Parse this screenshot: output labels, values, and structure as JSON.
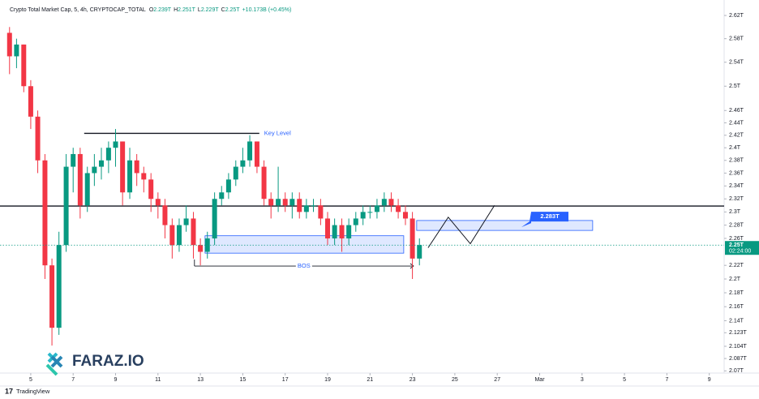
{
  "chart_data": {
    "type": "candlestick",
    "header": {
      "symbol": "Crypto Total Market Cap, 5, 4h, CRYPTOCAP_TOTAL",
      "ohlc": [
        {
          "key": "O",
          "value": "2.239T"
        },
        {
          "key": "H",
          "value": "2.251T"
        },
        {
          "key": "L",
          "value": "2.229T"
        },
        {
          "key": "C",
          "value": "2.25T"
        }
      ],
      "change": "+10.173B (+0.45%)"
    },
    "x": [
      4,
      4.33,
      4.67,
      5,
      5.33,
      5.67,
      6,
      6.33,
      6.67,
      7,
      7.33,
      7.67,
      8,
      8.33,
      8.67,
      9,
      9.33,
      9.67,
      10,
      10.33,
      10.67,
      11,
      11.33,
      11.67,
      12,
      12.33,
      12.67,
      13,
      13.33,
      13.67,
      14,
      14.33,
      14.67,
      15,
      15.33,
      15.67,
      16,
      16.33,
      16.67,
      17,
      17.33,
      17.67,
      18,
      18.33,
      18.67,
      19,
      19.33,
      19.67,
      20,
      20.33,
      20.67,
      21,
      21.33,
      21.67,
      22,
      22.33,
      22.67,
      23,
      23.33
    ],
    "open": [
      2.59,
      2.55,
      2.57,
      2.5,
      2.45,
      2.38,
      2.22,
      2.13,
      2.25,
      2.37,
      2.39,
      2.31,
      2.36,
      2.37,
      2.38,
      2.4,
      2.41,
      2.33,
      2.38,
      2.36,
      2.35,
      2.32,
      2.31,
      2.28,
      2.25,
      2.28,
      2.29,
      2.25,
      2.24,
      2.26,
      2.32,
      2.33,
      2.35,
      2.37,
      2.38,
      2.41,
      2.37,
      2.32,
      2.31,
      2.32,
      2.31,
      2.32,
      2.3,
      2.31,
      2.31,
      2.29,
      2.26,
      2.28,
      2.26,
      2.28,
      2.29,
      2.3,
      2.3,
      2.31,
      2.32,
      2.31,
      2.3,
      2.29,
      2.23
    ],
    "high": [
      2.6,
      2.58,
      2.57,
      2.51,
      2.46,
      2.39,
      2.23,
      2.27,
      2.39,
      2.4,
      2.4,
      2.37,
      2.39,
      2.4,
      2.41,
      2.43,
      2.41,
      2.4,
      2.39,
      2.37,
      2.36,
      2.33,
      2.32,
      2.29,
      2.29,
      2.31,
      2.3,
      2.26,
      2.27,
      2.33,
      2.34,
      2.36,
      2.38,
      2.4,
      2.42,
      2.41,
      2.38,
      2.33,
      2.37,
      2.33,
      2.33,
      2.33,
      2.32,
      2.32,
      2.32,
      2.3,
      2.29,
      2.29,
      2.29,
      2.3,
      2.31,
      2.31,
      2.32,
      2.33,
      2.33,
      2.32,
      2.31,
      2.3,
      2.26
    ],
    "low": [
      2.52,
      2.53,
      2.49,
      2.43,
      2.36,
      2.2,
      2.105,
      2.12,
      2.24,
      2.33,
      2.29,
      2.3,
      2.34,
      2.35,
      2.36,
      2.37,
      2.31,
      2.32,
      2.34,
      2.33,
      2.3,
      2.29,
      2.26,
      2.23,
      2.24,
      2.27,
      2.23,
      2.22,
      2.23,
      2.25,
      2.31,
      2.32,
      2.34,
      2.36,
      2.37,
      2.36,
      2.31,
      2.29,
      2.3,
      2.3,
      2.29,
      2.29,
      2.29,
      2.3,
      2.28,
      2.25,
      2.25,
      2.24,
      2.25,
      2.27,
      2.28,
      2.29,
      2.29,
      2.3,
      2.3,
      2.29,
      2.28,
      2.2,
      2.22
    ],
    "close": [
      2.55,
      2.57,
      2.5,
      2.45,
      2.38,
      2.22,
      2.13,
      2.25,
      2.37,
      2.39,
      2.31,
      2.36,
      2.37,
      2.38,
      2.4,
      2.41,
      2.33,
      2.38,
      2.36,
      2.35,
      2.32,
      2.31,
      2.28,
      2.25,
      2.28,
      2.29,
      2.25,
      2.24,
      2.26,
      2.32,
      2.33,
      2.35,
      2.37,
      2.38,
      2.41,
      2.37,
      2.32,
      2.31,
      2.32,
      2.31,
      2.32,
      2.3,
      2.31,
      2.31,
      2.29,
      2.26,
      2.28,
      2.26,
      2.28,
      2.29,
      2.3,
      2.3,
      2.31,
      2.32,
      2.31,
      2.3,
      2.29,
      2.23,
      2.25
    ],
    "up_color": "#089981",
    "down_color": "#f23645",
    "xlim": [
      3.55,
      37.7
    ],
    "xticks": [
      5,
      7,
      9,
      11,
      13,
      15,
      17,
      19,
      21,
      23,
      25,
      27,
      {
        "value": 29,
        "label": "Mar"
      },
      {
        "value": 31,
        "label": "3"
      },
      {
        "value": 33,
        "label": "5"
      },
      {
        "value": 35,
        "label": "7"
      },
      {
        "value": 37,
        "label": "9"
      }
    ],
    "ylim": [
      2.067,
      2.647
    ],
    "log_scale": true,
    "grid": false,
    "yticks": [
      {
        "value": 2.62,
        "label": "2.62T"
      },
      {
        "value": 2.58,
        "label": "2.58T"
      },
      {
        "value": 2.54,
        "label": "2.54T"
      },
      {
        "value": 2.5,
        "label": "2.5T"
      },
      {
        "value": 2.46,
        "label": "2.46T"
      },
      {
        "value": 2.44,
        "label": "2.44T"
      },
      {
        "value": 2.42,
        "label": "2.42T"
      },
      {
        "value": 2.4,
        "label": "2.4T"
      },
      {
        "value": 2.38,
        "label": "2.38T"
      },
      {
        "value": 2.36,
        "label": "2.36T"
      },
      {
        "value": 2.34,
        "label": "2.34T"
      },
      {
        "value": 2.32,
        "label": "2.32T"
      },
      {
        "value": 2.3,
        "label": "2.3T"
      },
      {
        "value": 2.28,
        "label": "2.28T"
      },
      {
        "value": 2.26,
        "label": "2.26T"
      },
      {
        "value": 2.22,
        "label": "2.22T"
      },
      {
        "value": 2.2,
        "label": "2.2T"
      },
      {
        "value": 2.18,
        "label": "2.18T"
      },
      {
        "value": 2.16,
        "label": "2.16T"
      },
      {
        "value": 2.14,
        "label": "2.14T"
      },
      {
        "value": 2.123,
        "label": "2.123T"
      },
      {
        "value": 2.104,
        "label": "2.104T"
      },
      {
        "value": 2.087,
        "label": "2.087T"
      },
      {
        "value": 2.07,
        "label": "2.07T"
      }
    ],
    "horizontal_line": 2.309,
    "key_level": {
      "label": "Key Level",
      "value": 2.423,
      "x": [
        7.52,
        15.78
      ]
    },
    "zones": [
      {
        "x": [
          13.22,
          22.59
        ],
        "y": [
          2.238,
          2.264
        ]
      },
      {
        "x": [
          23.2,
          31.5
        ],
        "y": [
          2.272,
          2.287
        ]
      }
    ],
    "bos": {
      "label": "BOS",
      "value": 2.219,
      "x": [
        12.72,
        23.05
      ]
    },
    "projection": {
      "x": [
        23.74,
        24.69,
        25.73,
        26.87
      ],
      "y": [
        2.246,
        2.292,
        2.252,
        2.31
      ]
    },
    "target_label": {
      "value": 2.283,
      "label": "2.283T"
    },
    "last_price": {
      "value": 2.25,
      "label": "2.25T",
      "countdown": "02:24:00"
    },
    "watermark": "FARAZ.IO",
    "branding": "TradingView"
  }
}
